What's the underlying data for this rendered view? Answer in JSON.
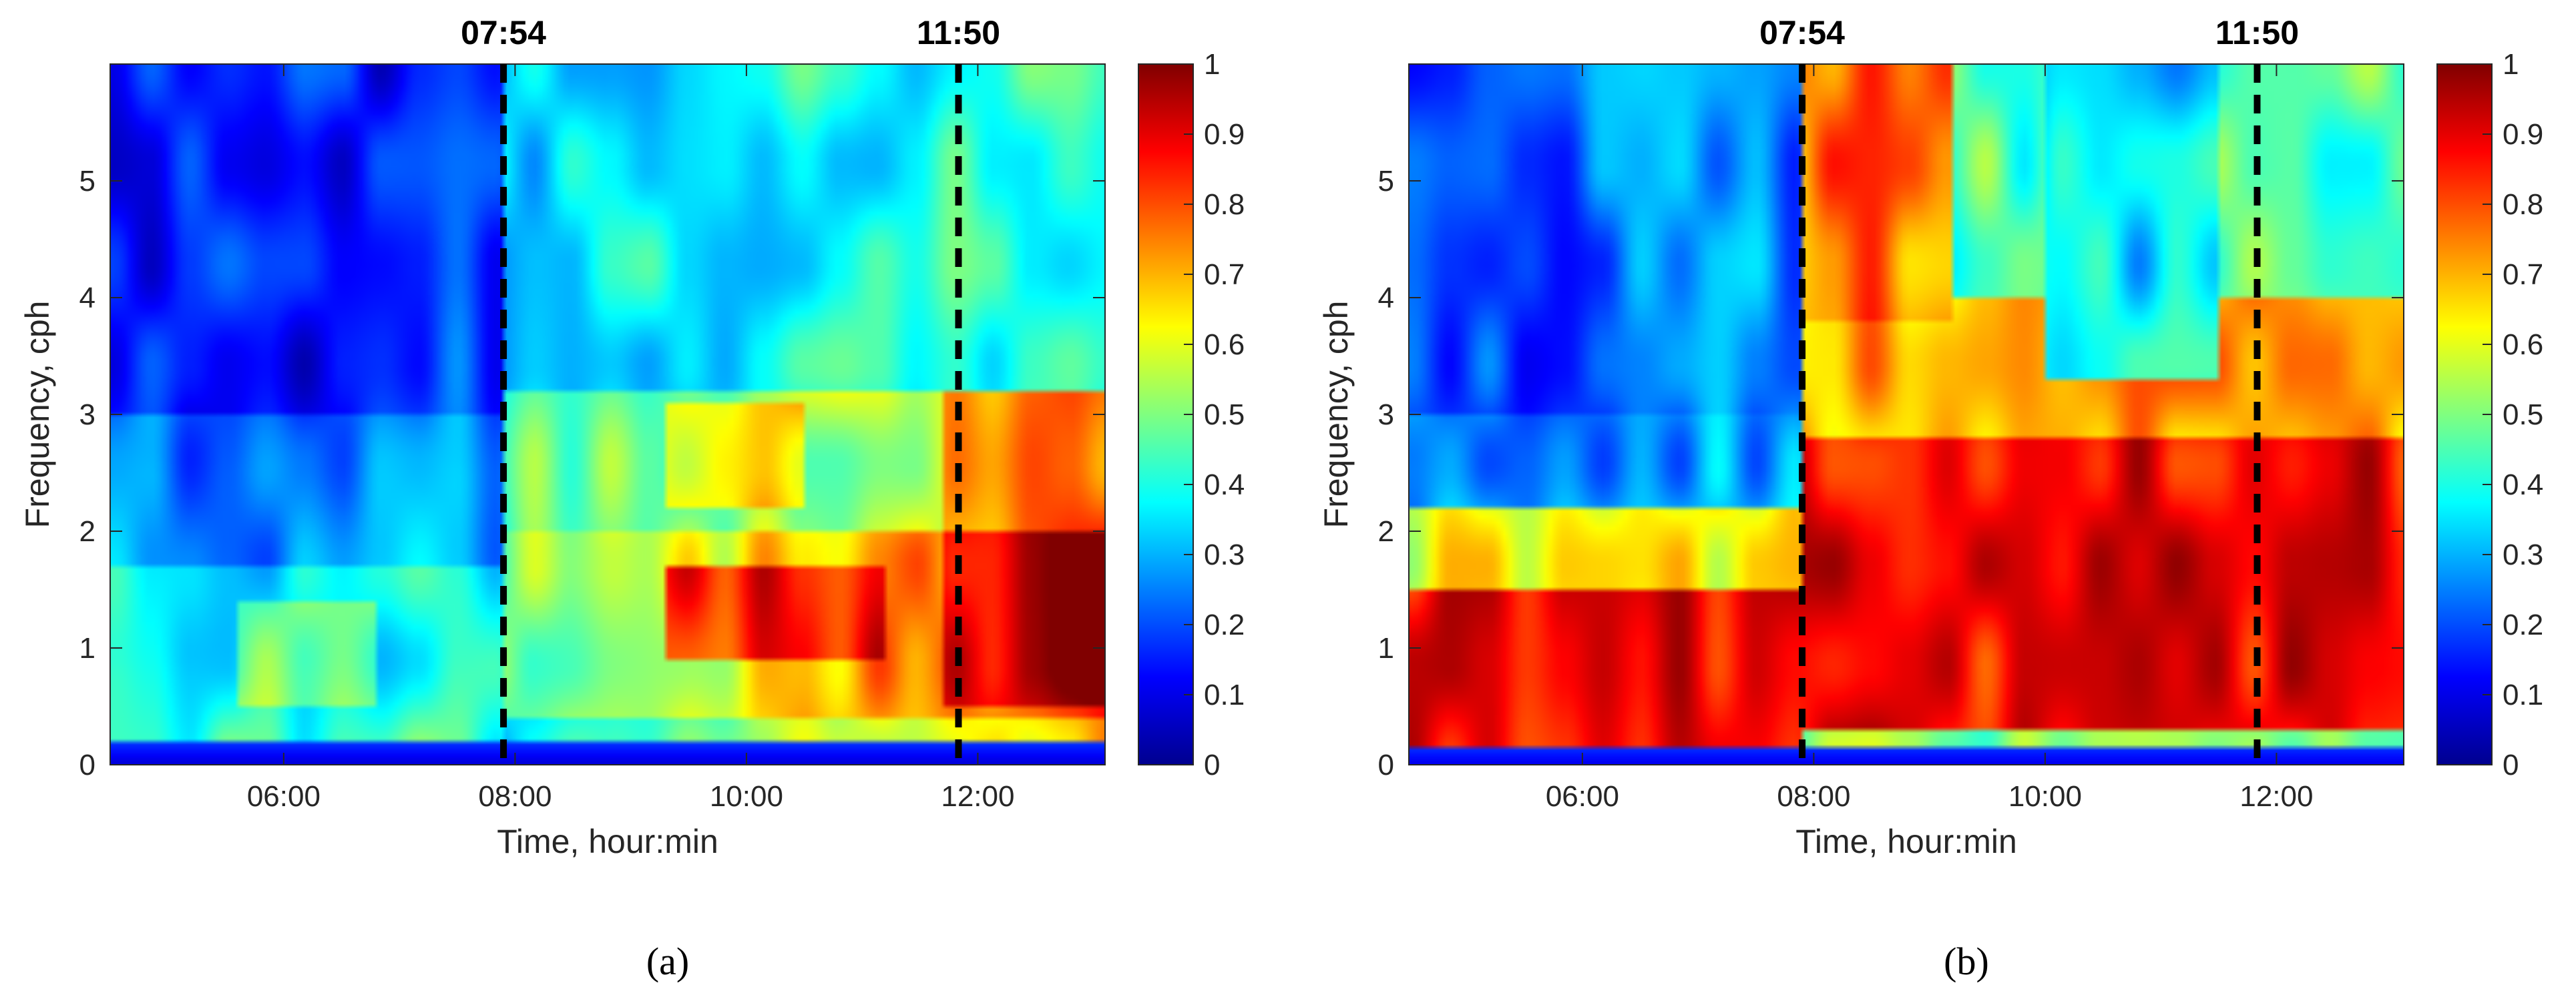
{
  "chart_data": [
    {
      "type": "heatmap",
      "panel_label": "(a)",
      "xlabel": "Time, hour:min",
      "ylabel": "Frequency, cph",
      "x_ticks": [
        "06:00",
        "08:00",
        "10:00",
        "12:00"
      ],
      "x_tick_hours": [
        6,
        8,
        10,
        12
      ],
      "xlim_hours": [
        4.5,
        13.1
      ],
      "y_ticks": [
        "0",
        "1",
        "2",
        "3",
        "4",
        "5"
      ],
      "ylim": [
        0,
        6
      ],
      "colorbar": {
        "colormap": "jet",
        "range": [
          0,
          1
        ],
        "ticks": [
          "0",
          "0.1",
          "0.2",
          "0.3",
          "0.4",
          "0.5",
          "0.6",
          "0.7",
          "0.8",
          "0.9",
          "1"
        ]
      },
      "events": [
        {
          "label": "07:54",
          "hour": 7.9,
          "style": "dashed",
          "color": "#000000"
        },
        {
          "label": "11:50",
          "hour": 11.833,
          "style": "dashed",
          "color": "#000000"
        }
      ]
    },
    {
      "type": "heatmap",
      "panel_label": "(b)",
      "xlabel": "Time, hour:min",
      "ylabel": "Frequency, cph",
      "x_ticks": [
        "06:00",
        "08:00",
        "10:00",
        "12:00"
      ],
      "x_tick_hours": [
        6,
        8,
        10,
        12
      ],
      "xlim_hours": [
        4.5,
        13.1
      ],
      "y_ticks": [
        "0",
        "1",
        "2",
        "3",
        "4",
        "5"
      ],
      "ylim": [
        0,
        6
      ],
      "colorbar": {
        "colormap": "jet",
        "range": [
          0,
          1
        ],
        "ticks": [
          "0",
          "0.1",
          "0.2",
          "0.3",
          "0.4",
          "0.5",
          "0.6",
          "0.7",
          "0.8",
          "0.9",
          "1"
        ]
      },
      "events": [
        {
          "label": "07:54",
          "hour": 7.9,
          "style": "dashed",
          "color": "#000000"
        },
        {
          "label": "11:50",
          "hour": 11.833,
          "style": "dashed",
          "color": "#000000"
        }
      ]
    }
  ]
}
